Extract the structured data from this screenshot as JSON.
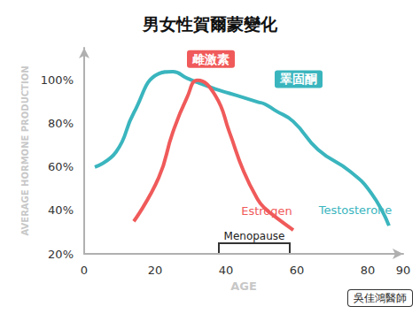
{
  "chart_data": {
    "type": "line",
    "title": "男女性賀爾蒙變化",
    "x_label": "AGE",
    "y_label": "AVERAGE HORMONE PRODUCTION",
    "x": [
      3,
      9,
      14,
      21,
      25,
      29,
      32,
      37,
      41,
      45,
      49,
      51,
      54,
      59,
      66,
      75,
      81,
      86
    ],
    "series": [
      {
        "name": "Testosterone",
        "label": "睪固酮",
        "color": "#3ab5be",
        "values": [
          60,
          67,
          85,
          103,
          104,
          101,
          99,
          96,
          94,
          92,
          90,
          89,
          86,
          81,
          68,
          58,
          48,
          33
        ]
      },
      {
        "name": "Estrogen",
        "label": "雌激素",
        "color": "#f05a5a",
        "values": [
          null,
          null,
          35,
          55,
          76,
          92,
          100,
          93,
          76,
          58,
          45,
          41,
          37,
          31,
          null,
          null,
          null,
          null
        ]
      }
    ],
    "xlim": [
      0,
      90
    ],
    "xticks": [
      0,
      20,
      40,
      60,
      80
    ],
    "ylim": [
      20,
      115
    ],
    "yticks": [
      {
        "value": 20,
        "label": "20%"
      },
      {
        "value": 40,
        "label": "40%"
      },
      {
        "value": 60,
        "label": "60%"
      },
      {
        "value": 80,
        "label": "80%"
      },
      {
        "value": 100,
        "label": "100%"
      }
    ],
    "grid": false,
    "menopause": {
      "label": "Menopause",
      "range": [
        38,
        58
      ]
    },
    "credit": "吳佳鴻醫師"
  }
}
